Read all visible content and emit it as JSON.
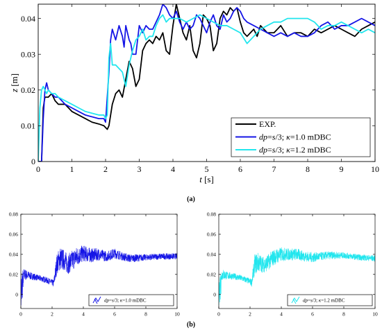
{
  "panel_labels": {
    "a": "(a)",
    "b": "(b)"
  },
  "colors": {
    "exp": "#000000",
    "k10": "#1515e6",
    "k12": "#22e6ee",
    "axis": "#000000"
  },
  "chart_data": [
    {
      "type": "line",
      "panel": "(a)",
      "xlabel": "t [s]",
      "ylabel": "z [m]",
      "xlim": [
        0,
        10
      ],
      "ylim": [
        0,
        0.044
      ],
      "xticks": [
        0,
        1,
        2,
        3,
        4,
        5,
        6,
        7,
        8,
        9,
        10
      ],
      "yticks": [
        0,
        0.01,
        0.02,
        0.03,
        0.04
      ],
      "ytick_labels": [
        "0",
        "0.01",
        "0.02",
        "0.03",
        "0.04"
      ],
      "grid": false,
      "legend_position": "lower-right",
      "series": [
        {
          "name": "EXP.",
          "color": "#000000",
          "x": [
            0.0,
            0.1,
            0.15,
            0.2,
            0.3,
            0.4,
            0.5,
            0.6,
            0.8,
            1.0,
            1.2,
            1.4,
            1.6,
            1.8,
            1.95,
            2.05,
            2.1,
            2.2,
            2.3,
            2.4,
            2.5,
            2.6,
            2.7,
            2.8,
            2.9,
            3.0,
            3.1,
            3.2,
            3.3,
            3.4,
            3.5,
            3.6,
            3.7,
            3.8,
            3.9,
            4.0,
            4.1,
            4.2,
            4.3,
            4.4,
            4.5,
            4.6,
            4.7,
            4.8,
            4.9,
            5.0,
            5.1,
            5.2,
            5.3,
            5.4,
            5.5,
            5.6,
            5.7,
            5.8,
            5.9,
            6.0,
            6.1,
            6.2,
            6.3,
            6.4,
            6.5,
            6.6,
            6.8,
            7.0,
            7.2,
            7.4,
            7.6,
            7.8,
            8.0,
            8.2,
            8.4,
            8.6,
            8.8,
            9.0,
            9.2,
            9.4,
            9.6,
            9.8,
            10.0
          ],
          "y": [
            0.0,
            0.0,
            0.015,
            0.018,
            0.018,
            0.019,
            0.017,
            0.016,
            0.016,
            0.014,
            0.013,
            0.012,
            0.011,
            0.0105,
            0.01,
            0.009,
            0.01,
            0.016,
            0.019,
            0.02,
            0.018,
            0.023,
            0.028,
            0.026,
            0.021,
            0.023,
            0.031,
            0.033,
            0.034,
            0.033,
            0.035,
            0.034,
            0.036,
            0.031,
            0.03,
            0.038,
            0.044,
            0.04,
            0.036,
            0.034,
            0.038,
            0.031,
            0.029,
            0.033,
            0.041,
            0.04,
            0.038,
            0.031,
            0.033,
            0.04,
            0.042,
            0.041,
            0.043,
            0.042,
            0.043,
            0.039,
            0.036,
            0.035,
            0.036,
            0.037,
            0.035,
            0.038,
            0.036,
            0.036,
            0.038,
            0.035,
            0.036,
            0.036,
            0.035,
            0.037,
            0.036,
            0.037,
            0.038,
            0.037,
            0.036,
            0.035,
            0.037,
            0.038,
            0.039
          ]
        },
        {
          "name": "dp=s/3; κ=1.0 mDBC",
          "color": "#1515e6",
          "x": [
            0.0,
            0.1,
            0.15,
            0.2,
            0.25,
            0.3,
            0.4,
            0.5,
            0.6,
            0.8,
            1.0,
            1.2,
            1.4,
            1.6,
            1.8,
            1.95,
            2.0,
            2.1,
            2.15,
            2.2,
            2.3,
            2.4,
            2.5,
            2.55,
            2.6,
            2.7,
            2.75,
            2.8,
            2.9,
            3.0,
            3.1,
            3.2,
            3.3,
            3.4,
            3.5,
            3.6,
            3.7,
            3.8,
            3.9,
            4.0,
            4.1,
            4.2,
            4.3,
            4.4,
            4.5,
            4.6,
            4.7,
            4.8,
            4.9,
            5.0,
            5.1,
            5.2,
            5.3,
            5.4,
            5.5,
            5.6,
            5.7,
            5.8,
            5.9,
            6.0,
            6.1,
            6.2,
            6.4,
            6.6,
            6.8,
            7.0,
            7.2,
            7.4,
            7.6,
            7.8,
            8.0,
            8.2,
            8.4,
            8.6,
            8.8,
            9.0,
            9.2,
            9.4,
            9.6,
            9.8,
            10.0
          ],
          "y": [
            0.0,
            0.0,
            0.012,
            0.02,
            0.022,
            0.02,
            0.019,
            0.018,
            0.018,
            0.016,
            0.015,
            0.014,
            0.013,
            0.0125,
            0.012,
            0.012,
            0.011,
            0.025,
            0.034,
            0.037,
            0.034,
            0.038,
            0.035,
            0.032,
            0.038,
            0.034,
            0.033,
            0.03,
            0.03,
            0.038,
            0.036,
            0.038,
            0.037,
            0.037,
            0.039,
            0.041,
            0.044,
            0.043,
            0.041,
            0.04,
            0.042,
            0.039,
            0.037,
            0.039,
            0.037,
            0.038,
            0.041,
            0.04,
            0.038,
            0.036,
            0.039,
            0.041,
            0.038,
            0.037,
            0.041,
            0.039,
            0.04,
            0.042,
            0.043,
            0.042,
            0.04,
            0.039,
            0.038,
            0.037,
            0.036,
            0.035,
            0.036,
            0.035,
            0.036,
            0.035,
            0.035,
            0.036,
            0.038,
            0.039,
            0.037,
            0.038,
            0.038,
            0.039,
            0.04,
            0.039,
            0.038
          ]
        },
        {
          "name": "dp=s/3; κ=1.2 mDBC",
          "color": "#22e6ee",
          "x": [
            0.0,
            0.05,
            0.1,
            0.15,
            0.2,
            0.25,
            0.3,
            0.4,
            0.5,
            0.6,
            0.8,
            1.0,
            1.2,
            1.4,
            1.6,
            1.8,
            1.95,
            2.0,
            2.05,
            2.1,
            2.15,
            2.2,
            2.3,
            2.4,
            2.5,
            2.6,
            2.7,
            2.8,
            2.9,
            3.0,
            3.1,
            3.2,
            3.3,
            3.4,
            3.5,
            3.6,
            3.7,
            3.8,
            3.9,
            4.0,
            4.2,
            4.4,
            4.6,
            4.8,
            5.0,
            5.2,
            5.4,
            5.6,
            5.8,
            6.0,
            6.2,
            6.4,
            6.6,
            6.8,
            7.0,
            7.2,
            7.4,
            7.6,
            7.8,
            8.0,
            8.2,
            8.4,
            8.6,
            8.8,
            9.0,
            9.2,
            9.4,
            9.6,
            9.8,
            10.0
          ],
          "y": [
            0.0,
            0.015,
            0.02,
            0.021,
            0.02,
            0.019,
            0.02,
            0.019,
            0.019,
            0.018,
            0.017,
            0.016,
            0.015,
            0.014,
            0.0135,
            0.013,
            0.013,
            0.012,
            0.013,
            0.029,
            0.033,
            0.027,
            0.027,
            0.026,
            0.025,
            0.021,
            0.027,
            0.031,
            0.034,
            0.035,
            0.037,
            0.034,
            0.035,
            0.035,
            0.038,
            0.04,
            0.041,
            0.039,
            0.04,
            0.04,
            0.04,
            0.039,
            0.04,
            0.041,
            0.04,
            0.039,
            0.038,
            0.038,
            0.037,
            0.036,
            0.033,
            0.035,
            0.037,
            0.038,
            0.039,
            0.039,
            0.04,
            0.04,
            0.04,
            0.04,
            0.039,
            0.037,
            0.038,
            0.038,
            0.039,
            0.038,
            0.037,
            0.036,
            0.037,
            0.036
          ]
        }
      ]
    },
    {
      "type": "line",
      "panel": "(b) left",
      "xlim": [
        0,
        10
      ],
      "ylim": [
        -0.014,
        0.08
      ],
      "xticks": [
        0,
        2,
        4,
        6,
        8,
        10
      ],
      "yticks": [
        0,
        0.02,
        0.04,
        0.06,
        0.08
      ],
      "ytick_labels": [
        "0",
        "0.02",
        "0.04",
        "0.06",
        "0.08"
      ],
      "legend_position": "lower-right",
      "series": [
        {
          "name": "dp=s/3; κ=1.0 mDBC",
          "color": "#1515e6",
          "x": [
            0,
            0.2,
            0.5,
            1,
            1.5,
            2,
            2.1,
            2.3,
            2.5,
            2.8,
            3,
            3.5,
            4,
            4.5,
            5,
            5.5,
            6,
            6.5,
            7,
            8,
            9,
            10
          ],
          "y": [
            0.0,
            0.02,
            0.019,
            0.017,
            0.015,
            0.012,
            0.011,
            0.03,
            0.036,
            0.034,
            0.03,
            0.037,
            0.041,
            0.039,
            0.04,
            0.038,
            0.041,
            0.038,
            0.036,
            0.037,
            0.038,
            0.038
          ],
          "noise": [
            0.003,
            0.006,
            0.004,
            0.003,
            0.003,
            0.003,
            0.004,
            0.01,
            0.012,
            0.01,
            0.01,
            0.01,
            0.008,
            0.007,
            0.006,
            0.005,
            0.005,
            0.004,
            0.004,
            0.003,
            0.003,
            0.003
          ]
        }
      ]
    },
    {
      "type": "line",
      "panel": "(b) right",
      "xlim": [
        0,
        10
      ],
      "ylim": [
        -0.014,
        0.08
      ],
      "xticks": [
        0,
        2,
        4,
        6,
        8,
        10
      ],
      "yticks": [
        0,
        0.02,
        0.04,
        0.06,
        0.08
      ],
      "ytick_labels": [
        "0",
        "0.02",
        "0.04",
        "0.06",
        "0.08"
      ],
      "legend_position": "lower-right",
      "series": [
        {
          "name": "dp=s/3; κ=1.2 mDBC",
          "color": "#22e6ee",
          "x": [
            0,
            0.2,
            0.5,
            1,
            1.5,
            2,
            2.1,
            2.3,
            2.5,
            2.8,
            3,
            3.5,
            4,
            4.5,
            5,
            5.5,
            6,
            6.5,
            7,
            8,
            9,
            10
          ],
          "y": [
            0.0,
            0.02,
            0.019,
            0.018,
            0.016,
            0.013,
            0.012,
            0.03,
            0.032,
            0.03,
            0.03,
            0.037,
            0.04,
            0.04,
            0.04,
            0.038,
            0.037,
            0.038,
            0.039,
            0.039,
            0.037,
            0.036
          ],
          "noise": [
            0.003,
            0.006,
            0.004,
            0.003,
            0.003,
            0.003,
            0.004,
            0.01,
            0.01,
            0.008,
            0.008,
            0.008,
            0.007,
            0.006,
            0.006,
            0.005,
            0.005,
            0.004,
            0.004,
            0.003,
            0.003,
            0.003
          ]
        }
      ]
    }
  ]
}
